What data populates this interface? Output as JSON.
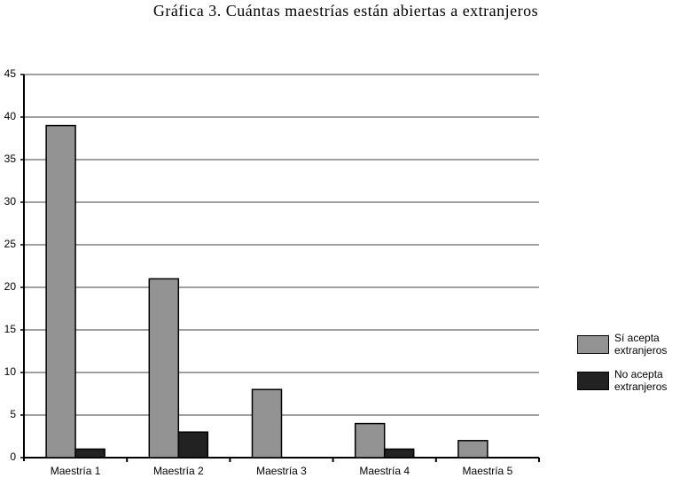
{
  "chart_data": {
    "type": "bar",
    "title": "Gráfica 3. Cuántas maestrías están abiertas a extranjeros",
    "categories": [
      "Maestría 1",
      "Maestría 2",
      "Maestría 3",
      "Maestría 4",
      "Maestría 5"
    ],
    "series": [
      {
        "name": "Sí acepta extranjeros",
        "color": "#939393",
        "values": [
          39,
          21,
          8,
          4,
          2
        ]
      },
      {
        "name": "No acepta extranjeros",
        "color": "#222222",
        "values": [
          1,
          3,
          0,
          1,
          0
        ]
      }
    ],
    "ylim": [
      0,
      45
    ],
    "yticks": [
      0,
      5,
      10,
      15,
      20,
      25,
      30,
      35,
      40,
      45
    ],
    "grid": true,
    "legend": "right"
  }
}
